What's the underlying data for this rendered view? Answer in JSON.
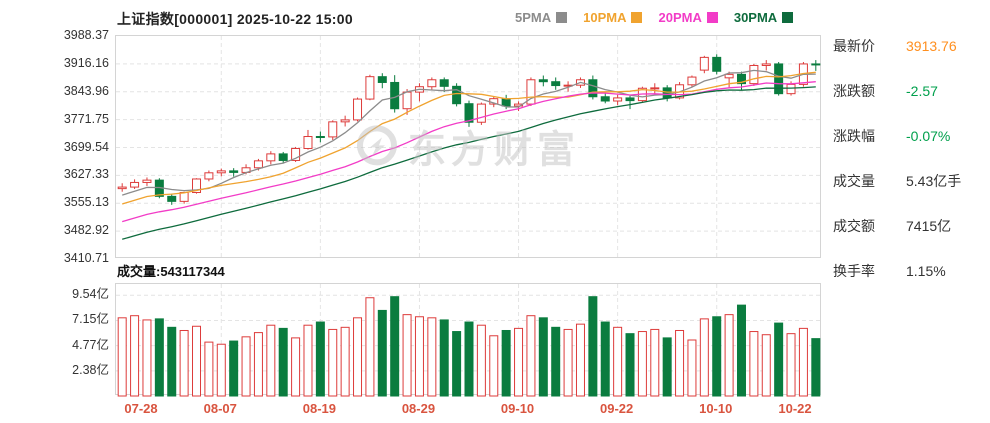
{
  "header": {
    "title": "上证指数[000001] 2025-10-22 15:00"
  },
  "watermark": {
    "text": "东方财富"
  },
  "volume_header": {
    "label": "成交量:",
    "value": "543117344"
  },
  "side_panel": {
    "rows": [
      {
        "label": "最新价",
        "value": "3913.76",
        "color": "#ff8f1f"
      },
      {
        "label": "涨跌额",
        "value": "-2.57",
        "color": "#00a04c"
      },
      {
        "label": "涨跌幅",
        "value": "-0.07%",
        "color": "#00a04c"
      },
      {
        "label": "成交量",
        "value": "5.43亿手",
        "color": "#333333"
      },
      {
        "label": "成交额",
        "value": "7415亿",
        "color": "#333333"
      },
      {
        "label": "换手率",
        "value": "1.15%",
        "color": "#333333"
      }
    ]
  },
  "chart_data": {
    "type": "candlestick+volume",
    "title": "上证指数[000001]",
    "colors": {
      "up": "#dd3b3a",
      "down": "#0a7c3f",
      "grid": "#e4e4e4",
      "date_label": "#d9543f"
    },
    "price_axis": {
      "max": 3988.37,
      "min": 3410.71,
      "labels": [
        "3988.37",
        "3916.16",
        "3843.96",
        "3771.75",
        "3699.54",
        "3627.33",
        "3555.13",
        "3482.92",
        "3410.71"
      ]
    },
    "volume_axis": {
      "max": 10.6,
      "unit": "亿手",
      "ticks": [
        {
          "label": "9.54亿",
          "value": 9.54
        },
        {
          "label": "7.15亿",
          "value": 7.15
        },
        {
          "label": "4.77亿",
          "value": 4.77
        },
        {
          "label": "2.38亿",
          "value": 2.38
        }
      ]
    },
    "x_ticks": [
      {
        "index": 0,
        "label": "07-28"
      },
      {
        "index": 8,
        "label": "08-07"
      },
      {
        "index": 16,
        "label": "08-19"
      },
      {
        "index": 24,
        "label": "08-29"
      },
      {
        "index": 32,
        "label": "09-10"
      },
      {
        "index": 40,
        "label": "09-22"
      },
      {
        "index": 48,
        "label": "10-10"
      },
      {
        "index": 56,
        "label": "10-22"
      }
    ],
    "ma": [
      {
        "period": 5,
        "label": "5PMA",
        "color": "#8c8c8c"
      },
      {
        "period": 10,
        "label": "10PMA",
        "color": "#f0a32f"
      },
      {
        "period": 20,
        "label": "20PMA",
        "color": "#f23cc7"
      },
      {
        "period": 30,
        "label": "30PMA",
        "color": "#0e6b3d"
      }
    ],
    "ma_seed_closes": [
      3330,
      3340,
      3350,
      3355,
      3365,
      3375,
      3385,
      3390,
      3400,
      3410,
      3420,
      3430,
      3440,
      3450,
      3455,
      3465,
      3475,
      3485,
      3495,
      3505,
      3510,
      3520,
      3530,
      3540,
      3550,
      3558,
      3566,
      3575,
      3585
    ],
    "candles_format": [
      "date",
      "open",
      "high",
      "low",
      "close",
      "volume_yi_shou"
    ],
    "candles": [
      [
        "07-28",
        3593,
        3607,
        3585,
        3597,
        7.4
      ],
      [
        "07-29",
        3597,
        3617,
        3592,
        3609,
        7.6
      ],
      [
        "07-30",
        3609,
        3622,
        3600,
        3615,
        7.2
      ],
      [
        "07-31",
        3615,
        3620,
        3568,
        3573,
        7.3
      ],
      [
        "08-01",
        3573,
        3580,
        3551,
        3560,
        6.5
      ],
      [
        "08-04",
        3560,
        3585,
        3554,
        3583,
        6.2
      ],
      [
        "08-05",
        3583,
        3620,
        3580,
        3618,
        6.6
      ],
      [
        "08-06",
        3618,
        3640,
        3612,
        3634,
        5.1
      ],
      [
        "08-07",
        3634,
        3645,
        3625,
        3639,
        4.9
      ],
      [
        "08-08",
        3639,
        3646,
        3624,
        3635,
        5.2
      ],
      [
        "08-11",
        3635,
        3656,
        3630,
        3647,
        5.6
      ],
      [
        "08-12",
        3647,
        3670,
        3640,
        3665,
        6.0
      ],
      [
        "08-13",
        3665,
        3690,
        3656,
        3683,
        6.7
      ],
      [
        "08-14",
        3683,
        3688,
        3658,
        3666,
        6.4
      ],
      [
        "08-15",
        3666,
        3701,
        3662,
        3697,
        5.5
      ],
      [
        "08-18",
        3697,
        3745,
        3694,
        3728,
        6.7
      ],
      [
        "08-19",
        3728,
        3741,
        3713,
        3727,
        7.0
      ],
      [
        "08-20",
        3727,
        3770,
        3719,
        3766,
        6.3
      ],
      [
        "08-21",
        3766,
        3782,
        3754,
        3771,
        6.5
      ],
      [
        "08-22",
        3771,
        3829,
        3767,
        3825,
        7.4
      ],
      [
        "08-25",
        3825,
        3888,
        3822,
        3883,
        9.3
      ],
      [
        "08-26",
        3883,
        3892,
        3853,
        3868,
        8.1
      ],
      [
        "08-27",
        3868,
        3887,
        3790,
        3800,
        9.4
      ],
      [
        "08-28",
        3800,
        3851,
        3784,
        3843,
        7.7
      ],
      [
        "08-29",
        3843,
        3866,
        3819,
        3857,
        7.5
      ],
      [
        "09-01",
        3857,
        3881,
        3849,
        3875,
        7.4
      ],
      [
        "09-02",
        3875,
        3881,
        3843,
        3858,
        7.2
      ],
      [
        "09-03",
        3858,
        3866,
        3806,
        3813,
        6.1
      ],
      [
        "09-04",
        3813,
        3821,
        3753,
        3765,
        7.0
      ],
      [
        "09-05",
        3765,
        3816,
        3758,
        3812,
        6.7
      ],
      [
        "09-08",
        3812,
        3831,
        3804,
        3826,
        5.7
      ],
      [
        "09-09",
        3826,
        3836,
        3799,
        3807,
        6.2
      ],
      [
        "09-10",
        3807,
        3819,
        3794,
        3812,
        6.4
      ],
      [
        "09-11",
        3812,
        3881,
        3807,
        3875,
        7.6
      ],
      [
        "09-12",
        3875,
        3886,
        3858,
        3870,
        7.4
      ],
      [
        "09-15",
        3870,
        3881,
        3849,
        3860,
        6.5
      ],
      [
        "09-16",
        3860,
        3871,
        3844,
        3861,
        6.3
      ],
      [
        "09-17",
        3861,
        3881,
        3854,
        3875,
        6.8
      ],
      [
        "09-18",
        3875,
        3886,
        3824,
        3831,
        9.4
      ],
      [
        "09-19",
        3831,
        3841,
        3814,
        3820,
        7.0
      ],
      [
        "09-22",
        3820,
        3836,
        3809,
        3828,
        6.5
      ],
      [
        "09-23",
        3828,
        3833,
        3799,
        3821,
        5.9
      ],
      [
        "09-24",
        3821,
        3857,
        3817,
        3853,
        6.1
      ],
      [
        "09-25",
        3853,
        3866,
        3839,
        3854,
        6.3
      ],
      [
        "09-26",
        3854,
        3861,
        3819,
        3828,
        5.5
      ],
      [
        "09-29",
        3828,
        3869,
        3824,
        3862,
        6.2
      ],
      [
        "09-30",
        3862,
        3886,
        3856,
        3882,
        5.3
      ],
      [
        "10-09",
        3900,
        3937,
        3892,
        3933,
        7.3
      ],
      [
        "10-10",
        3933,
        3941,
        3889,
        3897,
        7.5
      ],
      [
        "10-13",
        3880,
        3896,
        3854,
        3889,
        7.7
      ],
      [
        "10-14",
        3889,
        3896,
        3849,
        3865,
        8.6
      ],
      [
        "10-15",
        3865,
        3916,
        3859,
        3912,
        6.1
      ],
      [
        "10-16",
        3912,
        3926,
        3899,
        3916,
        5.8
      ],
      [
        "10-17",
        3916,
        3921,
        3834,
        3839,
        6.9
      ],
      [
        "10-20",
        3839,
        3871,
        3834,
        3863,
        5.9
      ],
      [
        "10-21",
        3863,
        3921,
        3857,
        3916,
        6.4
      ],
      [
        "10-22",
        3916,
        3926,
        3898,
        3913.76,
        5.43
      ]
    ]
  }
}
